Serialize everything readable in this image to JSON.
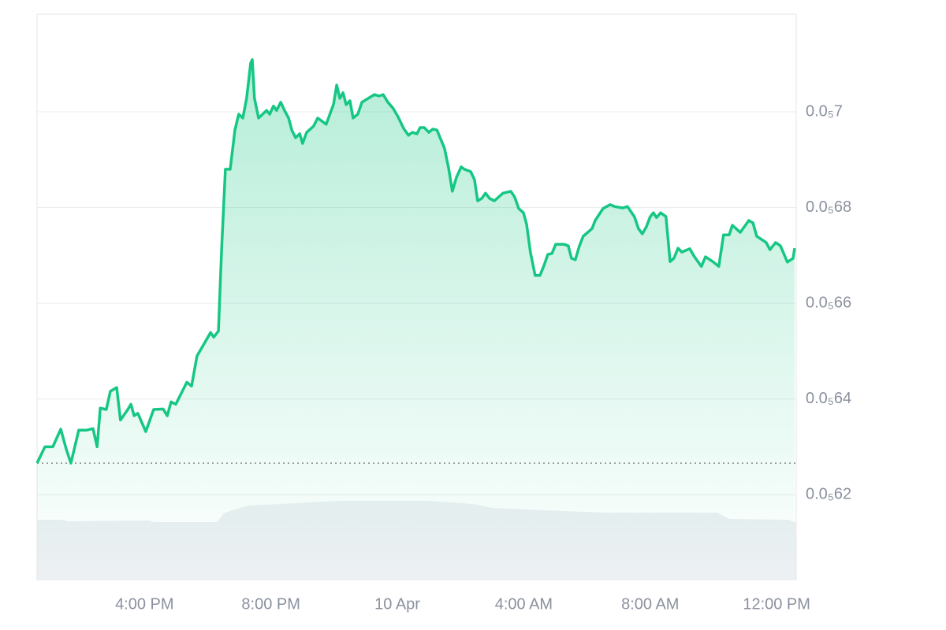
{
  "chart_data": {
    "type": "area",
    "x": [
      12.6,
      12.85,
      13.1,
      13.35,
      13.52,
      13.67,
      13.92,
      14.17,
      14.37,
      14.5,
      14.6,
      14.79,
      14.92,
      15.12,
      15.24,
      15.47,
      15.57,
      15.67,
      15.79,
      16.04,
      16.29,
      16.59,
      16.72,
      16.84,
      16.99,
      17.34,
      17.49,
      17.66,
      17.91,
      18.09,
      18.19,
      18.34,
      18.44,
      18.56,
      18.71,
      18.86,
      18.98,
      19.11,
      19.23,
      19.36,
      19.41,
      19.48,
      19.61,
      19.86,
      19.96,
      20.08,
      20.18,
      20.31,
      20.43,
      20.56,
      20.66,
      20.78,
      20.91,
      21.0,
      21.13,
      21.35,
      21.48,
      21.75,
      21.98,
      22.08,
      22.18,
      22.28,
      22.38,
      22.5,
      22.6,
      22.75,
      22.88,
      23.15,
      23.27,
      23.42,
      23.55,
      23.7,
      23.87,
      24.02,
      24.2,
      24.35,
      24.47,
      24.62,
      24.72,
      24.85,
      25.0,
      25.12,
      25.25,
      25.49,
      25.62,
      25.74,
      25.87,
      26.02,
      26.12,
      26.32,
      26.44,
      26.54,
      26.67,
      26.79,
      26.92,
      27.07,
      27.34,
      27.59,
      27.71,
      27.84,
      27.99,
      28.09,
      28.21,
      28.36,
      28.51,
      28.64,
      28.76,
      28.89,
      29.01,
      29.28,
      29.41,
      29.51,
      29.63,
      29.76,
      29.88,
      30.16,
      30.26,
      30.51,
      30.73,
      30.88,
      31.13,
      31.28,
      31.5,
      31.63,
      31.75,
      31.88,
      32.0,
      32.1,
      32.2,
      32.33,
      32.5,
      32.63,
      32.75,
      32.88,
      33.0,
      33.25,
      33.38,
      33.62,
      33.75,
      34.0,
      34.17,
      34.32,
      34.5,
      34.6,
      34.85,
      35.12,
      35.25,
      35.37,
      35.67,
      35.79,
      35.97,
      36.12,
      36.34,
      36.52,
      36.57
    ],
    "values": [
      6.266e-06,
      6.3e-06,
      6.3e-06,
      6.337e-06,
      6.296e-06,
      6.266e-06,
      6.335e-06,
      6.335e-06,
      6.338e-06,
      6.3e-06,
      6.381e-06,
      6.378e-06,
      6.416e-06,
      6.424e-06,
      6.356e-06,
      6.378e-06,
      6.389e-06,
      6.365e-06,
      6.37e-06,
      6.332e-06,
      6.378e-06,
      6.379e-06,
      6.365e-06,
      6.394e-06,
      6.389e-06,
      6.435e-06,
      6.427e-06,
      6.49e-06,
      6.518e-06,
      6.539e-06,
      6.529e-06,
      6.542e-06,
      6.712e-06,
      6.88e-06,
      6.88e-06,
      6.962e-06,
      6.995e-06,
      6.987e-06,
      7.028e-06,
      7.102e-06,
      7.109e-06,
      7.028e-06,
      6.987e-06,
      7.003e-06,
      6.995e-06,
      7.012e-06,
      7.003e-06,
      7.02e-06,
      7.003e-06,
      6.987e-06,
      6.962e-06,
      6.946e-06,
      6.954e-06,
      6.934e-06,
      6.957e-06,
      6.97e-06,
      6.987e-06,
      6.974e-06,
      7.016e-06,
      7.056e-06,
      7.028e-06,
      7.04e-06,
      7.015e-06,
      7.023e-06,
      6.987e-06,
      6.995e-06,
      7.02e-06,
      7.031e-06,
      7.036e-06,
      7.033e-06,
      7.036e-06,
      7.02e-06,
      7.007e-06,
      6.99e-06,
      6.965e-06,
      6.951e-06,
      6.957e-06,
      6.954e-06,
      6.967e-06,
      6.967e-06,
      6.957e-06,
      6.964e-06,
      6.962e-06,
      6.924e-06,
      6.883e-06,
      6.834e-06,
      6.863e-06,
      6.885e-06,
      6.88e-06,
      6.875e-06,
      6.858e-06,
      6.814e-06,
      6.819e-06,
      6.83e-06,
      6.819e-06,
      6.814e-06,
      6.83e-06,
      6.834e-06,
      6.822e-06,
      6.798e-06,
      6.789e-06,
      6.765e-06,
      6.707e-06,
      6.658e-06,
      6.658e-06,
      6.679e-06,
      6.702e-06,
      6.704e-06,
      6.723e-06,
      6.723e-06,
      6.72e-06,
      6.694e-06,
      6.691e-06,
      6.72e-06,
      6.74e-06,
      6.756e-06,
      6.773e-06,
      6.798e-06,
      6.806e-06,
      6.802e-06,
      6.799e-06,
      6.802e-06,
      6.781e-06,
      6.756e-06,
      6.745e-06,
      6.76e-06,
      6.781e-06,
      6.789e-06,
      6.779e-06,
      6.789e-06,
      6.781e-06,
      6.687e-06,
      6.694e-06,
      6.715e-06,
      6.707e-06,
      6.714e-06,
      6.699e-06,
      6.677e-06,
      6.697e-06,
      6.686e-06,
      6.677e-06,
      6.743e-06,
      6.743e-06,
      6.763e-06,
      6.748e-06,
      6.773e-06,
      6.768e-06,
      6.74e-06,
      6.727e-06,
      6.712e-06,
      6.727e-06,
      6.72e-06,
      6.686e-06,
      6.694e-06,
      6.715e-06
    ],
    "color": "#16c784",
    "xlim": [
      12.6,
      36.62
    ],
    "xticks": [
      {
        "value": 16,
        "label": "4:00 PM"
      },
      {
        "value": 20,
        "label": "8:00 PM"
      },
      {
        "value": 24,
        "label": "10 Apr"
      },
      {
        "value": 28,
        "label": "4:00 AM"
      },
      {
        "value": 32,
        "label": "8:00 AM"
      },
      {
        "value": 36,
        "label": "12:00 PM"
      }
    ],
    "ylim": [
      6.021e-06,
      7.204e-06
    ],
    "yticks": [
      {
        "value": 6.2e-06,
        "label": "0.0₅62"
      },
      {
        "value": 6.4e-06,
        "label": "0.0₅64"
      },
      {
        "value": 6.6e-06,
        "label": "0.0₅66"
      },
      {
        "value": 6.8e-06,
        "label": "0.0₅68"
      },
      {
        "value": 7e-06,
        "label": "0.0₅7"
      }
    ],
    "grid": true
  }
}
